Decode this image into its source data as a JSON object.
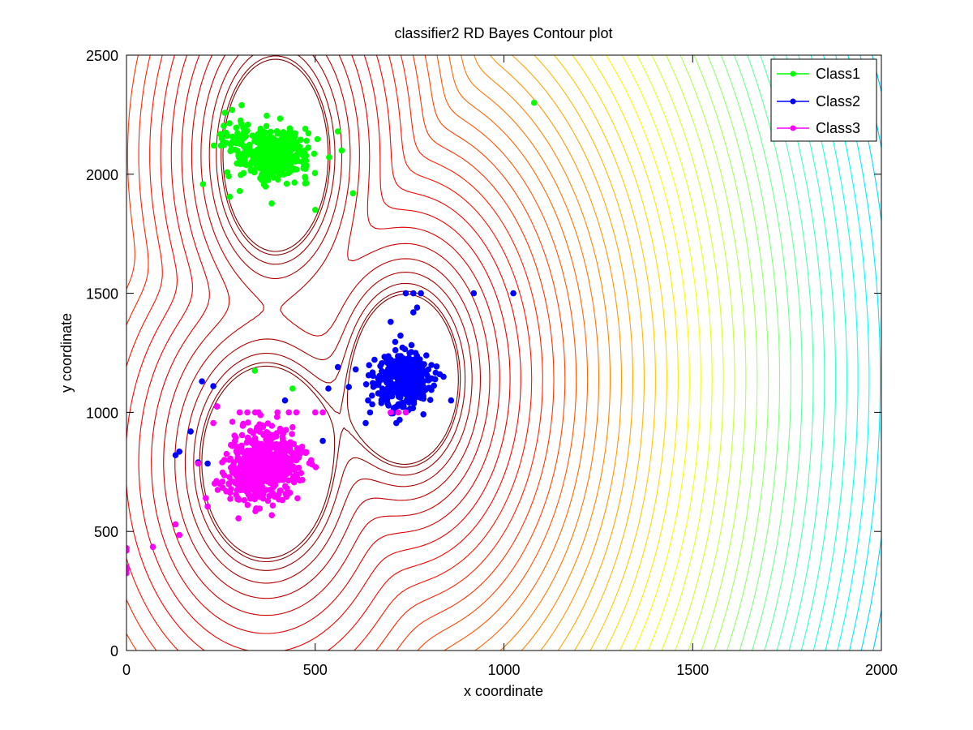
{
  "chart_data": {
    "type": "scatter",
    "title": "classifier2 RD Bayes Contour plot",
    "xlabel": "x coordinate",
    "ylabel": "y coordinate",
    "xlim": [
      0,
      2000
    ],
    "ylim": [
      0,
      2500
    ],
    "xticks": [
      0,
      500,
      1000,
      1500,
      2000
    ],
    "yticks": [
      0,
      500,
      1000,
      1500,
      2000,
      2500
    ],
    "grid": false,
    "legend_position": "top-right",
    "contour_overlay": true,
    "series": [
      {
        "name": "Class1",
        "color": "#00ff00",
        "clusters": [
          {
            "center": [
              395,
              2080
            ],
            "spread": [
              45,
              50
            ],
            "count": 420
          },
          {
            "center": [
              300,
              2120
            ],
            "spread": [
              30,
              60
            ],
            "count": 60
          }
        ],
        "points": [
          [
            1080,
            2300
          ],
          [
            440,
            1100
          ],
          [
            340,
            1175
          ],
          [
            600,
            1920
          ],
          [
            560,
            2180
          ],
          [
            305,
            2290
          ],
          [
            280,
            2270
          ],
          [
            250,
            2120
          ],
          [
            500,
            1850
          ]
        ]
      },
      {
        "name": "Class2",
        "color": "#0000ff",
        "clusters": [
          {
            "center": [
              740,
              1140
            ],
            "spread": [
              30,
              55
            ],
            "count": 380
          },
          {
            "center": [
              690,
              1120
            ],
            "spread": [
              45,
              70
            ],
            "count": 60
          }
        ],
        "points": [
          [
            920,
            1500
          ],
          [
            1025,
            1500
          ],
          [
            740,
            1500
          ],
          [
            760,
            1500
          ],
          [
            780,
            1500
          ],
          [
            770,
            1440
          ],
          [
            760,
            1420
          ],
          [
            700,
            1380
          ],
          [
            560,
            1190
          ],
          [
            535,
            1100
          ],
          [
            520,
            880
          ],
          [
            420,
            1050
          ],
          [
            200,
            1130
          ],
          [
            230,
            1110
          ],
          [
            240,
            1025
          ],
          [
            170,
            920
          ],
          [
            130,
            820
          ],
          [
            140,
            835
          ],
          [
            190,
            790
          ],
          [
            215,
            785
          ],
          [
            860,
            1050
          ],
          [
            715,
            955
          ],
          [
            640,
            1050
          ],
          [
            830,
            1160
          ],
          [
            840,
            1150
          ]
        ]
      },
      {
        "name": "Class3",
        "color": "#ff00ff",
        "clusters": [
          {
            "center": [
              370,
              790
            ],
            "spread": [
              45,
              70
            ],
            "count": 520
          },
          {
            "center": [
              330,
              720
            ],
            "spread": [
              40,
              55
            ],
            "count": 120
          }
        ],
        "points": [
          [
            0,
            430
          ],
          [
            0,
            420
          ],
          [
            0,
            350
          ],
          [
            0,
            340
          ],
          [
            0,
            325
          ],
          [
            70,
            435
          ],
          [
            130,
            530
          ],
          [
            140,
            485
          ],
          [
            190,
            785
          ],
          [
            215,
            605
          ],
          [
            210,
            640
          ],
          [
            230,
            955
          ],
          [
            240,
            1025
          ],
          [
            520,
            1000
          ],
          [
            500,
            1000
          ],
          [
            700,
            1000
          ],
          [
            720,
            1000
          ],
          [
            740,
            1000
          ],
          [
            350,
            1000
          ],
          [
            320,
            1000
          ],
          [
            300,
            1000
          ],
          [
            400,
            1000
          ],
          [
            450,
            1000
          ],
          [
            430,
            1000
          ]
        ]
      }
    ],
    "contours": {
      "levels": 62,
      "colormap": "jet",
      "cluster_centers": [
        [
          395,
          2080
        ],
        [
          740,
          1140
        ],
        [
          370,
          790
        ]
      ]
    }
  }
}
